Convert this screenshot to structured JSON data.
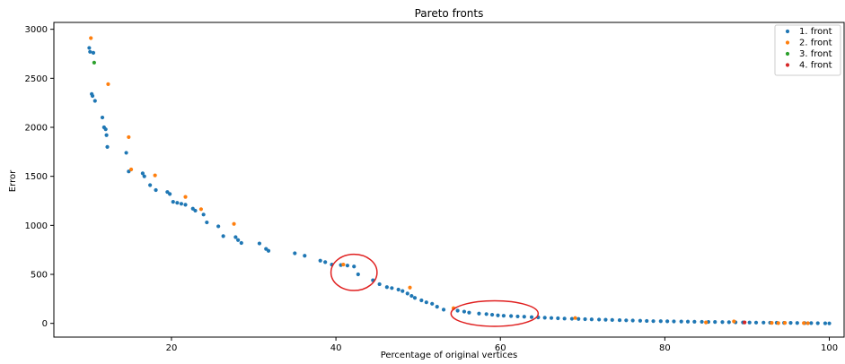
{
  "chart_data": {
    "type": "scatter",
    "title": "Pareto fronts",
    "xlabel": "Percentage of original vertices",
    "ylabel": "Error",
    "xlim": [
      5.7,
      101.8
    ],
    "ylim": [
      -140,
      3070
    ],
    "xticks": [
      20,
      40,
      60,
      80,
      100
    ],
    "yticks": [
      0,
      500,
      1000,
      1500,
      2000,
      2500,
      3000
    ],
    "grid": false,
    "legend_position": "top-right",
    "series": [
      {
        "name": "1. front",
        "color": "#1f77b4",
        "x": [
          10.0,
          10.1,
          10.3,
          10.4,
          10.5,
          10.7,
          11.6,
          11.8,
          12.0,
          12.1,
          12.2,
          14.5,
          14.8,
          16.5,
          16.7,
          17.4,
          18.1,
          19.5,
          19.8,
          20.2,
          20.7,
          21.2,
          21.7,
          22.6,
          22.9,
          23.9,
          24.3,
          25.7,
          26.3,
          27.8,
          28.1,
          28.5,
          30.7,
          31.5,
          31.8,
          35.0,
          36.2,
          38.1,
          38.7,
          39.5,
          40.6,
          41.4,
          42.2,
          42.7,
          44.5,
          45.3,
          46.2,
          46.8,
          47.6,
          48.1,
          48.7,
          49.2,
          49.6,
          50.4,
          51.0,
          51.7,
          52.3,
          53.1,
          54.8,
          55.6,
          56.2,
          57.4,
          58.3,
          59.0,
          59.7,
          60.4,
          61.3,
          62.1,
          62.9,
          63.8,
          64.6,
          65.4,
          66.2,
          67.0,
          67.8,
          68.7,
          69.5,
          70.3,
          71.1,
          72.0,
          72.8,
          73.6,
          74.5,
          75.3,
          76.1,
          77.0,
          77.8,
          78.6,
          79.5,
          80.3,
          81.1,
          82.0,
          82.8,
          83.6,
          84.5,
          85.3,
          86.1,
          87.0,
          87.8,
          88.6,
          89.5,
          90.3,
          91.1,
          92.0,
          92.8,
          93.6,
          94.5,
          95.3,
          96.1,
          97.0,
          97.8,
          98.6,
          99.5,
          100.0
        ],
        "y": [
          2810,
          2770,
          2340,
          2320,
          2760,
          2270,
          2100,
          2000,
          1980,
          1920,
          1800,
          1740,
          1550,
          1530,
          1500,
          1410,
          1360,
          1340,
          1320,
          1240,
          1230,
          1220,
          1210,
          1170,
          1150,
          1110,
          1030,
          990,
          890,
          880,
          850,
          820,
          815,
          760,
          740,
          715,
          690,
          640,
          625,
          600,
          595,
          590,
          580,
          500,
          440,
          400,
          370,
          360,
          345,
          330,
          305,
          280,
          260,
          235,
          215,
          200,
          170,
          140,
          130,
          120,
          110,
          100,
          95,
          88,
          82,
          78,
          75,
          71,
          68,
          64,
          61,
          58,
          55,
          52,
          49,
          47,
          45,
          43,
          41,
          39,
          37,
          35,
          33,
          31,
          29,
          27,
          25,
          23,
          22,
          21,
          20,
          19,
          18,
          17,
          16,
          15,
          14,
          13,
          12,
          11,
          10,
          9,
          8,
          8,
          7,
          6,
          5,
          5,
          4,
          3,
          3,
          2,
          1,
          0
        ]
      },
      {
        "name": "2. front",
        "color": "#ff7f0e",
        "x": [
          10.2,
          12.3,
          14.8,
          15.1,
          18.0,
          21.7,
          23.6,
          27.6,
          40.9,
          49.0,
          54.3,
          69.1,
          85.0,
          88.4,
          93.0,
          93.8,
          94.6,
          96.9,
          97.4
        ],
        "y": [
          2910,
          2440,
          1900,
          1570,
          1510,
          1290,
          1165,
          1015,
          600,
          365,
          155,
          55,
          10,
          20,
          5,
          3,
          5,
          3,
          2
        ]
      },
      {
        "name": "3. front",
        "color": "#2ca02c",
        "x": [
          10.6
        ],
        "y": [
          2660
        ]
      },
      {
        "name": "4. front",
        "color": "#d62728",
        "x": [
          89.7
        ],
        "y": [
          10
        ]
      }
    ],
    "annotations": [
      {
        "shape": "ellipse",
        "color": "#e02020",
        "cx": 42.2,
        "cy": 520,
        "rx": 2.8,
        "ry": 185
      },
      {
        "shape": "ellipse",
        "color": "#e02020",
        "cx": 59.3,
        "cy": 100,
        "rx": 5.3,
        "ry": 130
      }
    ]
  }
}
